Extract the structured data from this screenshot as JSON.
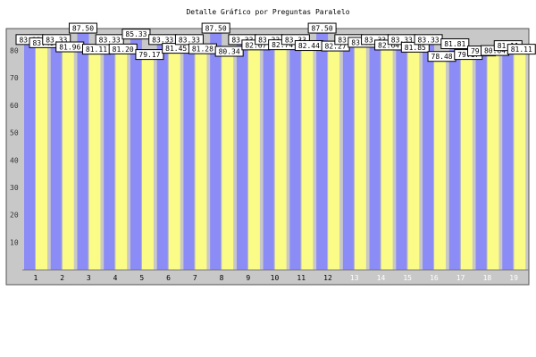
{
  "chart_data": {
    "type": "bar",
    "title": "Detalle Gráfico por Preguntas Paralelo",
    "xlabel": "",
    "ylabel": "",
    "ylim": [
      0,
      88
    ],
    "yticks": [
      10,
      20,
      30,
      40,
      50,
      60,
      70,
      80
    ],
    "grid": false,
    "legend": "none",
    "categories": [
      "1",
      "2",
      "3",
      "4",
      "5",
      "6",
      "7",
      "8",
      "9",
      "10",
      "11",
      "12",
      "13",
      "14",
      "15",
      "16",
      "17",
      "18",
      "19"
    ],
    "series": [
      {
        "values": [
          83.33,
          83.33,
          87.5,
          83.33,
          85.33,
          83.33,
          83.33,
          87.5,
          83.33,
          83.33,
          83.33,
          87.5,
          83.33,
          83.33,
          83.33,
          83.33,
          81.81,
          79.17,
          81.11
        ]
      },
      {
        "values": [
          83.48,
          81.96,
          81.11,
          81.2,
          79.17,
          81.45,
          81.28,
          80.34,
          82.67,
          82.74,
          82.44,
          82.27,
          83.63,
          82.64,
          81.85,
          78.48,
          79.17,
          80.64,
          81.11
        ]
      }
    ],
    "colors": {
      "series_a": "#8c8cf6",
      "series_b": "#fbfb88",
      "plot_bg": "#c8c8c8",
      "outer_bg": "#ffffff"
    },
    "label_format": "2 decimals"
  }
}
